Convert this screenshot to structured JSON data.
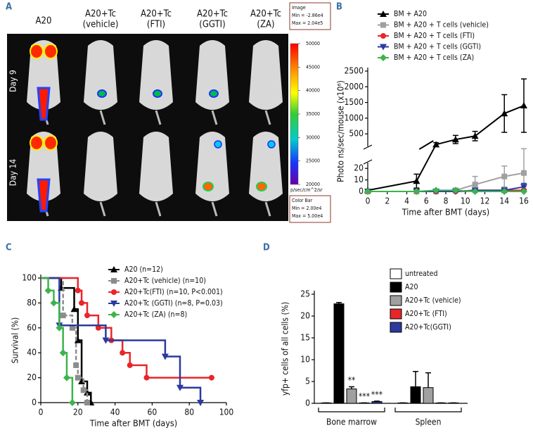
{
  "panel_a": {
    "label": "A",
    "columns": [
      [
        "A20"
      ],
      [
        "A20+Tc",
        "(vehicle)"
      ],
      [
        "A20+Tc",
        "(FTI)"
      ],
      [
        "A20+Tc",
        "(GGTI)"
      ],
      [
        "A20+Tc",
        "(ZA)"
      ]
    ],
    "rows": [
      "Day 9",
      "Day 14"
    ],
    "image_box": [
      "Image",
      "Min = -2.86e4",
      "Max = 2.04e5"
    ],
    "clim": [
      20000,
      50000
    ],
    "colorbar_ticks": [
      50000,
      45000,
      40000,
      35000,
      30000,
      25000,
      20000
    ],
    "colorbar_unit": "p/sec/cm^2/sr",
    "color_box": [
      "Color Bar",
      "Min = 2.00e4",
      "Max = 5.00e4"
    ]
  },
  "chart_data": [
    {
      "type": "line",
      "label": "B",
      "xlabel": "Time after BMT (days)",
      "ylabel": "Photo ns/sec/mouse (x10⁶)",
      "x": [
        0,
        5,
        7,
        9,
        11,
        14,
        16
      ],
      "xlim": [
        0,
        16
      ],
      "xticks": [
        0,
        2,
        4,
        6,
        8,
        10,
        12,
        14,
        16
      ],
      "ylim": [
        0,
        2500
      ],
      "ybreak": [
        25,
        100
      ],
      "yticks": [
        0,
        10,
        20,
        500,
        1000,
        1500,
        2000,
        2500
      ],
      "series": [
        {
          "name": "BM + A20",
          "color": "#000000",
          "marker": "triangle-up",
          "values": [
            1,
            9,
            160,
            320,
            430,
            1150,
            1400
          ],
          "errors": [
            0,
            6,
            60,
            130,
            150,
            600,
            850
          ]
        },
        {
          "name": "BM + A20 + T cells (vehicle)",
          "color": "#a0a0a0",
          "marker": "square",
          "values": [
            0,
            0,
            0,
            1,
            6,
            13,
            16
          ],
          "errors": [
            0,
            0,
            0,
            1,
            7,
            9,
            12
          ]
        },
        {
          "name": "BM + A20 + T cells (FTI)",
          "color": "#e8262a",
          "marker": "circle",
          "values": [
            0,
            0,
            0,
            0,
            1,
            1,
            1
          ],
          "errors": [
            0,
            0,
            0,
            0,
            1,
            1,
            1
          ]
        },
        {
          "name": "BM + A20 + T cells (GGTI)",
          "color": "#2b3a9e",
          "marker": "triangle-down",
          "values": [
            0,
            0,
            0,
            0,
            1,
            1,
            4
          ],
          "errors": [
            0,
            0,
            0,
            0,
            1,
            2,
            3
          ]
        },
        {
          "name": "BM + A20 + T cells (ZA)",
          "color": "#3cb44b",
          "marker": "diamond",
          "values": [
            0,
            0,
            1,
            1,
            0,
            0,
            0
          ]
        }
      ]
    },
    {
      "type": "step",
      "label": "C",
      "xlabel": "Time after BMT (days)",
      "ylabel": "Survival (%)",
      "xlim": [
        0,
        100
      ],
      "xticks": [
        0,
        20,
        40,
        60,
        80,
        100
      ],
      "ylim": [
        0,
        100
      ],
      "yticks": [
        0,
        20,
        40,
        60,
        80,
        100
      ],
      "series": [
        {
          "name": "A20 (n=12)",
          "color": "#000000",
          "marker": "triangle-up",
          "x": [
            0,
            11,
            18,
            20,
            22,
            25,
            27
          ],
          "values": [
            100,
            92,
            75,
            50,
            17,
            8,
            0
          ]
        },
        {
          "name": "A20+Tc (vehicle) (n=10)",
          "color": "#8c8c8c",
          "marker": "square",
          "dash": true,
          "x": [
            0,
            12,
            17,
            19,
            20,
            23,
            25
          ],
          "values": [
            100,
            70,
            60,
            30,
            20,
            10,
            0
          ]
        },
        {
          "name": "A20+Tc(FTI) (n=10, P<0.001)",
          "color": "#e8262a",
          "marker": "circle",
          "x": [
            0,
            20,
            22,
            25,
            31,
            38,
            44,
            48,
            57,
            92
          ],
          "values": [
            100,
            90,
            80,
            70,
            60,
            50,
            40,
            30,
            20,
            20
          ]
        },
        {
          "name": "A20+Tc (GGTI) (n=8, P=0.03)",
          "color": "#2b3a9e",
          "marker": "triangle-down",
          "x": [
            0,
            10,
            35,
            67,
            75,
            86
          ],
          "values": [
            100,
            62,
            50,
            37,
            12,
            0
          ]
        },
        {
          "name": "A20+Tc (ZA) (n=8)",
          "color": "#3cb44b",
          "marker": "diamond",
          "x": [
            0,
            4,
            7,
            10,
            12,
            14,
            17
          ],
          "values": [
            100,
            90,
            80,
            60,
            40,
            20,
            0
          ]
        }
      ]
    },
    {
      "type": "bar",
      "label": "D",
      "ylabel": "yfp+ cells of all cells (%)",
      "categories": [
        "Bone marrow",
        "Spleen"
      ],
      "ylim": [
        0,
        25
      ],
      "yticks": [
        0,
        5,
        10,
        15,
        20,
        25
      ],
      "series": [
        {
          "name": "untreated",
          "color": "#ffffff",
          "values": [
            0.1,
            0.1
          ],
          "errors": [
            0,
            0
          ]
        },
        {
          "name": "A20",
          "color": "#000000",
          "values": [
            22.8,
            3.8
          ],
          "errors": [
            0.3,
            3.5
          ]
        },
        {
          "name": "A20+Tc (vehicle)",
          "color": "#a0a0a0",
          "values": [
            3.3,
            3.6
          ],
          "errors": [
            0.5,
            3.4
          ],
          "significance": [
            "**",
            null
          ]
        },
        {
          "name": "A20+Tc (FTI)",
          "color": "#e8262a",
          "values": [
            0.1,
            0.1
          ],
          "errors": [
            0,
            0
          ],
          "significance": [
            "***",
            null
          ]
        },
        {
          "name": "A20+Tc(GGTI)",
          "color": "#2b3a9e",
          "values": [
            0.4,
            0.1
          ],
          "errors": [
            0.1,
            0
          ],
          "significance": [
            "***",
            null
          ]
        }
      ]
    }
  ]
}
